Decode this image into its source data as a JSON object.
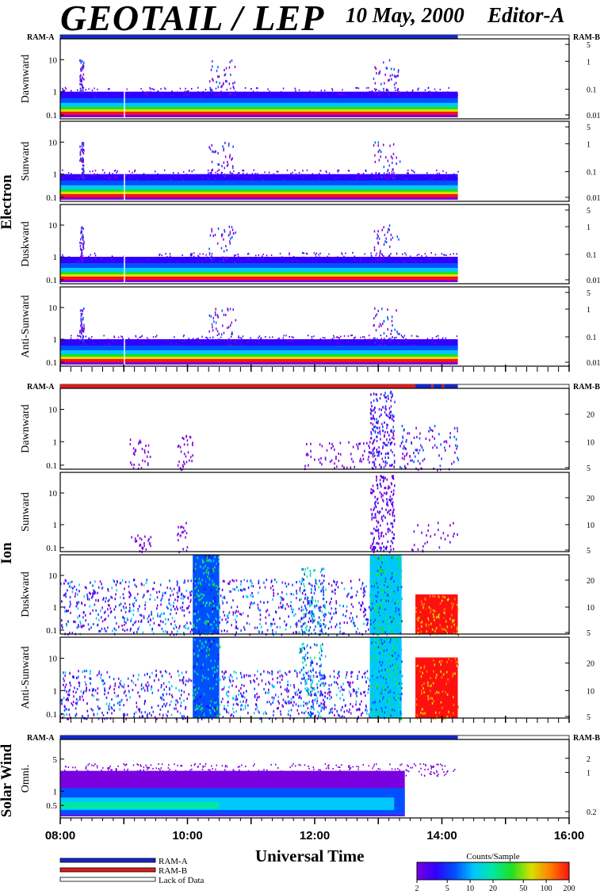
{
  "header": {
    "title": "GEOTAIL / LEP",
    "date": "10 May, 2000",
    "editor": "Editor-A"
  },
  "chart_data": {
    "type": "heatmap",
    "xlabel": "Universal Time",
    "x_ticks": [
      "08:00",
      "10:00",
      "12:00",
      "14:00",
      "16:00"
    ],
    "xlim": [
      "08:00",
      "16:00"
    ],
    "data_end": "14:15",
    "groups": [
      {
        "label": "Electron",
        "mode_left_label": "RAM-A",
        "mode_right_label": "RAM-B",
        "mode_bar": [
          {
            "mode": "RAM-A",
            "from": "08:00",
            "to": "14:15"
          },
          {
            "mode": "Lack of Data",
            "from": "14:15",
            "to": "16:00"
          }
        ],
        "panels": [
          {
            "label": "Dawnward",
            "left_ticks": [
              "10",
              "1",
              "0.1"
            ],
            "right_ticks": [
              "5",
              "1",
              "0.1",
              "0.01"
            ]
          },
          {
            "label": "Sunward",
            "left_ticks": [
              "10",
              "1",
              "0.1"
            ],
            "right_ticks": [
              "5",
              "1",
              "0.1",
              "0.01"
            ]
          },
          {
            "label": "Duskward",
            "left_ticks": [
              "10",
              "1",
              "0.1"
            ],
            "right_ticks": [
              "5",
              "1",
              "0.1",
              "0.01"
            ]
          },
          {
            "label": "Anti-Sunward",
            "left_ticks": [
              "10",
              "1",
              "0.1"
            ],
            "right_ticks": [
              "5",
              "1",
              "0.1",
              "0.01"
            ]
          }
        ]
      },
      {
        "label": "Ion",
        "mode_left_label": "RAM-A",
        "mode_right_label": "RAM-B",
        "mode_bar": [
          {
            "mode": "RAM-B",
            "from": "08:00",
            "to": "13:35"
          },
          {
            "mode": "RAM-A",
            "from": "13:35",
            "to": "13:50"
          },
          {
            "mode": "RAM-B",
            "from": "13:50",
            "to": "13:52"
          },
          {
            "mode": "RAM-A",
            "from": "13:52",
            "to": "14:00"
          },
          {
            "mode": "RAM-B",
            "from": "14:00",
            "to": "14:02"
          },
          {
            "mode": "RAM-A",
            "from": "14:02",
            "to": "14:15"
          },
          {
            "mode": "Lack of Data",
            "from": "14:15",
            "to": "16:00"
          }
        ],
        "panels": [
          {
            "label": "Dawnward",
            "left_ticks": [
              "10",
              "1",
              "0.1"
            ],
            "right_ticks": [
              "20",
              "10",
              "5"
            ]
          },
          {
            "label": "Sunward",
            "left_ticks": [
              "10",
              "1",
              "0.1"
            ],
            "right_ticks": [
              "20",
              "10",
              "5"
            ]
          },
          {
            "label": "Duskward",
            "left_ticks": [
              "10",
              "1",
              "0.1"
            ],
            "right_ticks": [
              "20",
              "10",
              "5"
            ]
          },
          {
            "label": "Anti-Sunward",
            "left_ticks": [
              "10",
              "1",
              "0.1"
            ],
            "right_ticks": [
              "20",
              "10",
              "5"
            ]
          }
        ]
      },
      {
        "label": "Solar Wind",
        "mode_left_label": "RAM-A",
        "mode_right_label": "RAM-B",
        "mode_bar": [
          {
            "mode": "RAM-A",
            "from": "08:00",
            "to": "14:15"
          },
          {
            "mode": "Lack of Data",
            "from": "14:15",
            "to": "16:00"
          }
        ],
        "panels": [
          {
            "label": "Omni.",
            "left_ticks": [
              "5",
              "1",
              "0.5"
            ],
            "right_ticks": [
              "2",
              "1",
              "0.2"
            ]
          }
        ]
      }
    ],
    "legend": [
      {
        "label": "RAM-A",
        "color": "#1428c8"
      },
      {
        "label": "RAM-B",
        "color": "#dc1e1e"
      },
      {
        "label": "Lack of Data",
        "color": "#ffffff"
      }
    ],
    "colorbar": {
      "title": "Counts/Sample",
      "ticks": [
        "2",
        "5",
        "10",
        "20",
        "50",
        "100",
        "200"
      ],
      "range": [
        2,
        200
      ],
      "scale": "log",
      "colors": [
        "#7a00e0",
        "#3000ff",
        "#0050ff",
        "#00c8ff",
        "#00e8a0",
        "#20e020",
        "#d8e000",
        "#ff8000",
        "#ff1010"
      ]
    }
  }
}
